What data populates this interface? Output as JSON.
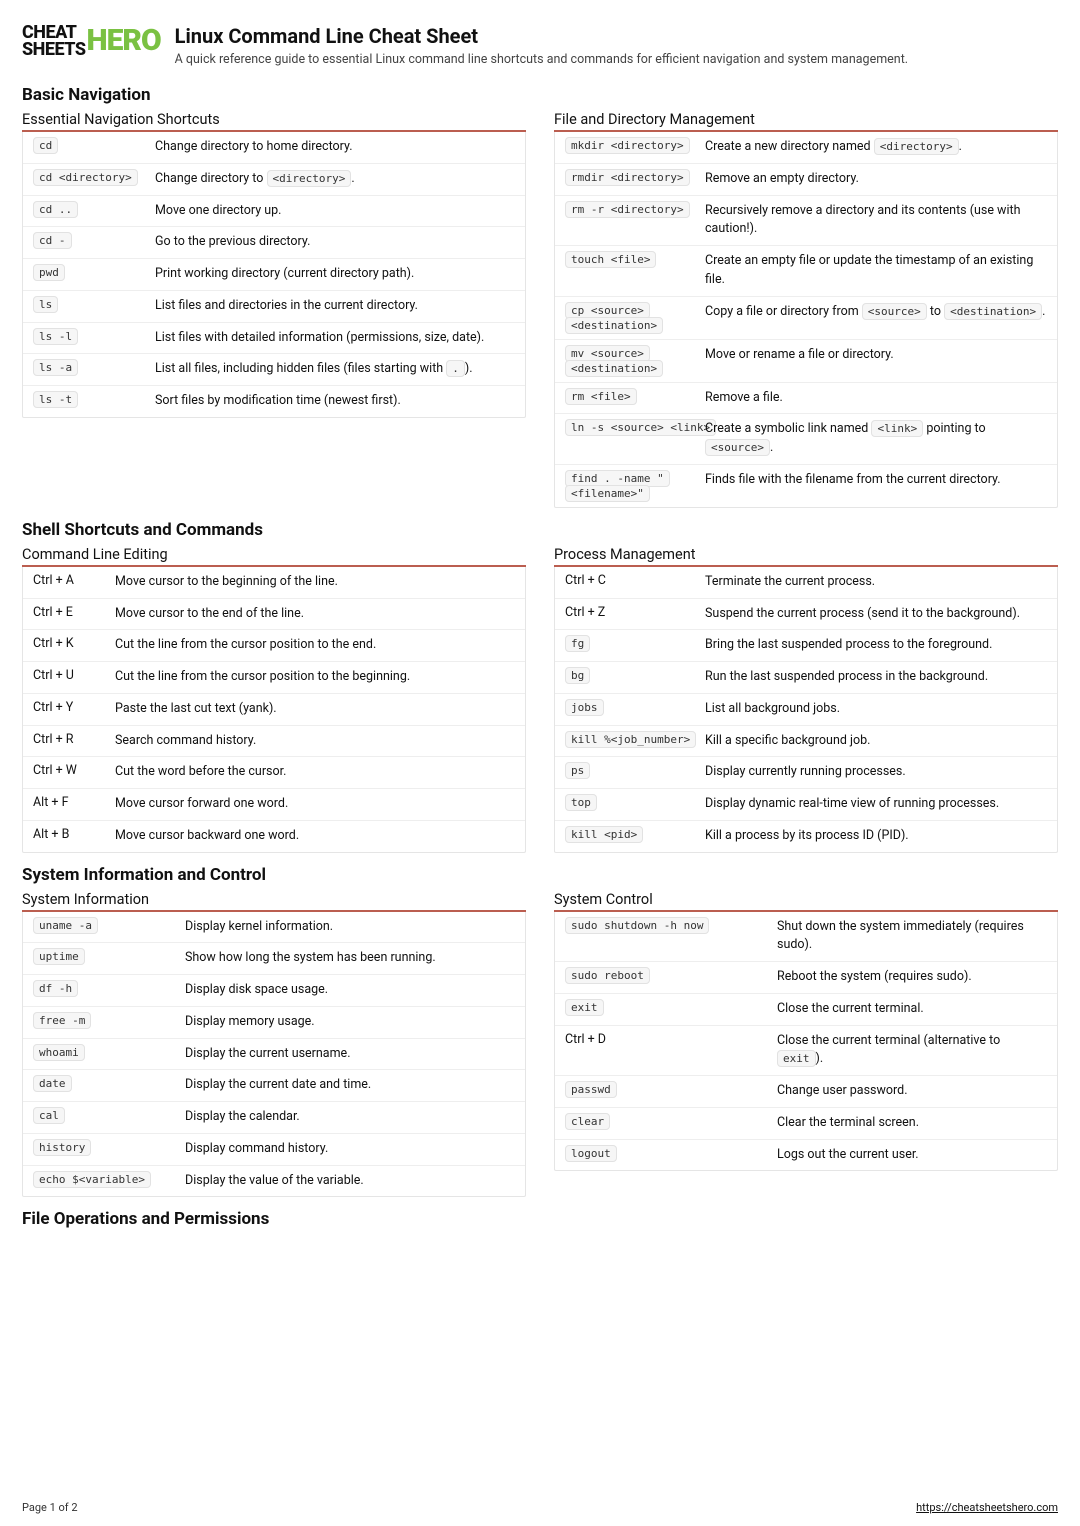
{
  "logo": {
    "left_top": "CHEAT",
    "left_bottom": "SHEETS",
    "right": "HERO"
  },
  "header": {
    "title": "Linux Command Line Cheat Sheet",
    "subtitle": "A quick reference guide to essential Linux command line shortcuts and commands for efficient navigation and system management."
  },
  "colors": {
    "accent": "#bb5e50",
    "chip_bg": "#f6f6f6",
    "chip_border": "#e2e2e2",
    "border": "#e5e5e5"
  },
  "sections": [
    {
      "title": "Basic Navigation",
      "left": {
        "title": "Essential Navigation Shortcuts",
        "cmd_width": "cmd-cell-w1",
        "rows": [
          {
            "cmd": "cd",
            "desc": [
              {
                "t": "Change directory to home directory."
              }
            ]
          },
          {
            "cmd": "cd <directory>",
            "desc": [
              {
                "t": "Change directory to "
              },
              {
                "c": "<directory>"
              },
              {
                "t": "."
              }
            ]
          },
          {
            "cmd": "cd ..",
            "desc": [
              {
                "t": "Move one directory up."
              }
            ]
          },
          {
            "cmd": "cd -",
            "desc": [
              {
                "t": "Go to the previous directory."
              }
            ]
          },
          {
            "cmd": "pwd",
            "desc": [
              {
                "t": "Print working directory (current directory path)."
              }
            ]
          },
          {
            "cmd": "ls",
            "desc": [
              {
                "t": "List files and directories in the current directory."
              }
            ]
          },
          {
            "cmd": "ls -l",
            "desc": [
              {
                "t": "List files with detailed information (permissions, size, date)."
              }
            ]
          },
          {
            "cmd": "ls -a",
            "desc": [
              {
                "t": "List all files, including hidden files (files starting with "
              },
              {
                "c": "."
              },
              {
                "t": ")."
              }
            ]
          },
          {
            "cmd": "ls -t",
            "desc": [
              {
                "t": "Sort files by modification time (newest first)."
              }
            ]
          }
        ]
      },
      "right": {
        "title": "File and Directory Management",
        "cmd_width": "cmd-cell-w2",
        "rows": [
          {
            "cmd": "mkdir <directory>",
            "desc": [
              {
                "t": "Create a new directory named "
              },
              {
                "c": "<directory>"
              },
              {
                "t": "."
              }
            ]
          },
          {
            "cmd": "rmdir <directory>",
            "desc": [
              {
                "t": "Remove an empty directory."
              }
            ]
          },
          {
            "cmd": "rm -r <directory>",
            "desc": [
              {
                "t": "Recursively remove a directory and its contents (use with caution!)."
              }
            ]
          },
          {
            "cmd": "touch <file>",
            "desc": [
              {
                "t": "Create an empty file or update the timestamp of an existing file."
              }
            ]
          },
          {
            "cmd2": [
              "cp <source>",
              "<destination>"
            ],
            "desc": [
              {
                "t": "Copy a file or directory from "
              },
              {
                "c": "<source>"
              },
              {
                "t": " to "
              },
              {
                "c": "<destination>"
              },
              {
                "t": "."
              }
            ]
          },
          {
            "cmd2": [
              "mv <source>",
              "<destination>"
            ],
            "desc": [
              {
                "t": "Move or rename a file or directory."
              }
            ]
          },
          {
            "cmd": "rm <file>",
            "desc": [
              {
                "t": "Remove a file."
              }
            ]
          },
          {
            "cmd": "ln -s <source> <link>",
            "desc": [
              {
                "t": "Create a symbolic link named "
              },
              {
                "c": "<link>"
              },
              {
                "t": " pointing to "
              },
              {
                "c": "<source>"
              },
              {
                "t": "."
              }
            ]
          },
          {
            "cmd2": [
              "find . -name \"",
              "<filename>\""
            ],
            "desc": [
              {
                "t": "Finds file with the filename from the current directory."
              }
            ]
          }
        ]
      }
    },
    {
      "title": "Shell Shortcuts and Commands",
      "left": {
        "title": "Command Line Editing",
        "cmd_width": "cmd-cell-w3",
        "key_mode": true,
        "rows": [
          {
            "key": "Ctrl + A",
            "desc": [
              {
                "t": "Move cursor to the beginning of the line."
              }
            ]
          },
          {
            "key": "Ctrl + E",
            "desc": [
              {
                "t": "Move cursor to the end of the line."
              }
            ]
          },
          {
            "key": "Ctrl + K",
            "desc": [
              {
                "t": "Cut the line from the cursor position to the end."
              }
            ]
          },
          {
            "key": "Ctrl + U",
            "desc": [
              {
                "t": "Cut the line from the cursor position to the beginning."
              }
            ]
          },
          {
            "key": "Ctrl + Y",
            "desc": [
              {
                "t": "Paste the last cut text (yank)."
              }
            ]
          },
          {
            "key": "Ctrl + R",
            "desc": [
              {
                "t": "Search command history."
              }
            ]
          },
          {
            "key": "Ctrl + W",
            "desc": [
              {
                "t": "Cut the word before the cursor."
              }
            ]
          },
          {
            "key": "Alt + F",
            "desc": [
              {
                "t": "Move cursor forward one word."
              }
            ]
          },
          {
            "key": "Alt + B",
            "desc": [
              {
                "t": "Move cursor backward one word."
              }
            ]
          }
        ]
      },
      "right": {
        "title": "Process Management",
        "cmd_width": "cmd-cell-w2",
        "rows": [
          {
            "key": "Ctrl + C",
            "desc": [
              {
                "t": "Terminate the current process."
              }
            ]
          },
          {
            "key": "Ctrl + Z",
            "desc": [
              {
                "t": "Suspend the current process (send it to the background)."
              }
            ]
          },
          {
            "cmd": "fg",
            "desc": [
              {
                "t": "Bring the last suspended process to the foreground."
              }
            ]
          },
          {
            "cmd": "bg",
            "desc": [
              {
                "t": "Run the last suspended process in the background."
              }
            ]
          },
          {
            "cmd": "jobs",
            "desc": [
              {
                "t": "List all background jobs."
              }
            ]
          },
          {
            "cmd": "kill %<job_number>",
            "desc": [
              {
                "t": "Kill a specific background job."
              }
            ]
          },
          {
            "cmd": "ps",
            "desc": [
              {
                "t": "Display currently running processes."
              }
            ]
          },
          {
            "cmd": "top",
            "desc": [
              {
                "t": "Display dynamic real-time view of running processes."
              }
            ]
          },
          {
            "cmd": "kill <pid>",
            "desc": [
              {
                "t": "Kill a process by its process ID (PID)."
              }
            ]
          }
        ]
      }
    },
    {
      "title": "System Information and Control",
      "left": {
        "title": "System Information",
        "cmd_width": "cmd-cell-w5",
        "rows": [
          {
            "cmd": "uname -a",
            "desc": [
              {
                "t": "Display kernel information."
              }
            ]
          },
          {
            "cmd": "uptime",
            "desc": [
              {
                "t": "Show how long the system has been running."
              }
            ]
          },
          {
            "cmd": "df -h",
            "desc": [
              {
                "t": "Display disk space usage."
              }
            ]
          },
          {
            "cmd": "free -m",
            "desc": [
              {
                "t": "Display memory usage."
              }
            ]
          },
          {
            "cmd": "whoami",
            "desc": [
              {
                "t": "Display the current username."
              }
            ]
          },
          {
            "cmd": "date",
            "desc": [
              {
                "t": "Display the current date and time."
              }
            ]
          },
          {
            "cmd": "cal",
            "desc": [
              {
                "t": "Display the calendar."
              }
            ]
          },
          {
            "cmd": "history",
            "desc": [
              {
                "t": "Display command history."
              }
            ]
          },
          {
            "cmd": "echo $<variable>",
            "desc": [
              {
                "t": "Display the value of the variable."
              }
            ]
          }
        ]
      },
      "right": {
        "title": "System Control",
        "cmd_width": "cmd-cell-w6",
        "rows": [
          {
            "cmd": "sudo shutdown -h now",
            "desc": [
              {
                "t": "Shut down the system immediately (requires sudo)."
              }
            ]
          },
          {
            "cmd": "sudo reboot",
            "desc": [
              {
                "t": "Reboot the system (requires sudo)."
              }
            ]
          },
          {
            "cmd": "exit",
            "desc": [
              {
                "t": "Close the current terminal."
              }
            ]
          },
          {
            "key": "Ctrl + D",
            "desc": [
              {
                "t": "Close the current terminal (alternative to "
              },
              {
                "c": "exit"
              },
              {
                "t": ")."
              }
            ]
          },
          {
            "cmd": "passwd",
            "desc": [
              {
                "t": "Change user password."
              }
            ]
          },
          {
            "cmd": "clear",
            "desc": [
              {
                "t": "Clear the terminal screen."
              }
            ]
          },
          {
            "cmd": "logout",
            "desc": [
              {
                "t": "Logs out the current user."
              }
            ]
          }
        ]
      }
    }
  ],
  "trailing_section": "File Operations and Permissions",
  "footer": {
    "page": "Page 1 of 2",
    "url": "https://cheatsheetshero.com"
  }
}
